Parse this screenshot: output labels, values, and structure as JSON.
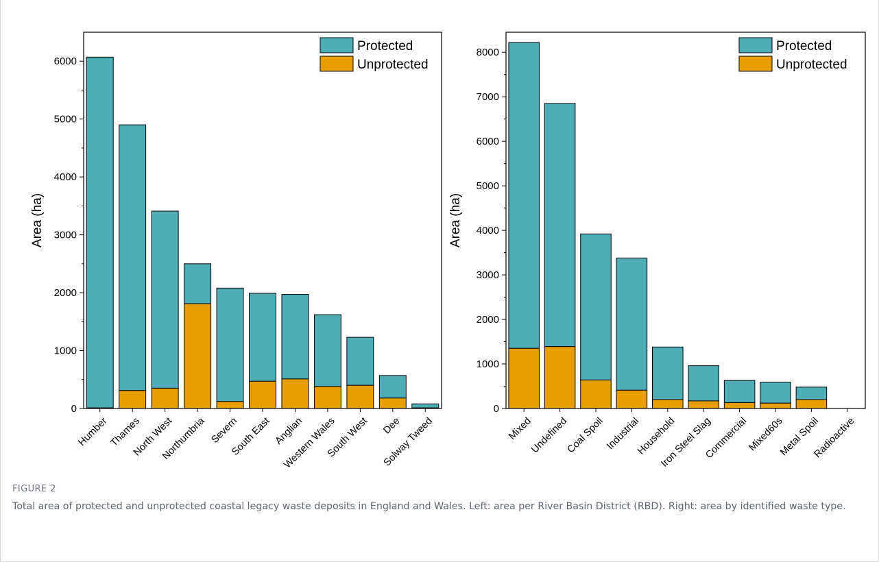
{
  "figure": {
    "label": "FIGURE 2",
    "caption": "Total area of protected and unprotected coastal legacy waste deposits in England and Wales. Left: area per River Basin District (RBD). Right: area by identified waste type."
  },
  "colors": {
    "protected": "#4fadb8",
    "unprotected": "#e69e00"
  },
  "chart_data": [
    {
      "type": "bar",
      "stacked": true,
      "categories": [
        "Humber",
        "Thames",
        "North West",
        "Northumbria",
        "Severn",
        "South East",
        "Anglian",
        "Western Wales",
        "South West",
        "Dee",
        "Solway Tweed"
      ],
      "series": [
        {
          "name": "Unprotected",
          "values": [
            10,
            310,
            350,
            1810,
            120,
            470,
            510,
            380,
            400,
            180,
            10
          ]
        },
        {
          "name": "Protected",
          "values": [
            6060,
            4590,
            3060,
            690,
            1960,
            1520,
            1460,
            1240,
            830,
            390,
            70
          ]
        }
      ],
      "totals": [
        6070,
        4900,
        3410,
        2500,
        2080,
        1990,
        1970,
        1620,
        1230,
        570,
        80
      ],
      "ylabel": "Area (ha)",
      "xlabel": "",
      "ylim": [
        0,
        6500
      ],
      "yticks": [
        0,
        1000,
        2000,
        3000,
        4000,
        5000,
        6000
      ],
      "legend": [
        "Protected",
        "Unprotected"
      ],
      "legend_position": "top-right"
    },
    {
      "type": "bar",
      "stacked": true,
      "categories": [
        "Mixed",
        "Undefined",
        "Coal Spoil",
        "Industrial",
        "Household",
        "Iron Steel Slag",
        "Commercial",
        "Mixed60s",
        "Metal Spoil",
        "Radioactive"
      ],
      "series": [
        {
          "name": "Unprotected",
          "values": [
            1350,
            1390,
            640,
            410,
            200,
            170,
            130,
            120,
            200,
            0
          ]
        },
        {
          "name": "Protected",
          "values": [
            6870,
            5460,
            3280,
            2970,
            1180,
            790,
            500,
            470,
            280,
            0
          ]
        }
      ],
      "totals": [
        8220,
        6850,
        3920,
        3380,
        1380,
        960,
        630,
        590,
        480,
        0
      ],
      "ylabel": "Area (ha)",
      "xlabel": "",
      "ylim": [
        0,
        8450
      ],
      "yticks": [
        0,
        1000,
        2000,
        3000,
        4000,
        5000,
        6000,
        7000,
        8000
      ],
      "legend": [
        "Protected",
        "Unprotected"
      ],
      "legend_position": "top-right"
    }
  ]
}
